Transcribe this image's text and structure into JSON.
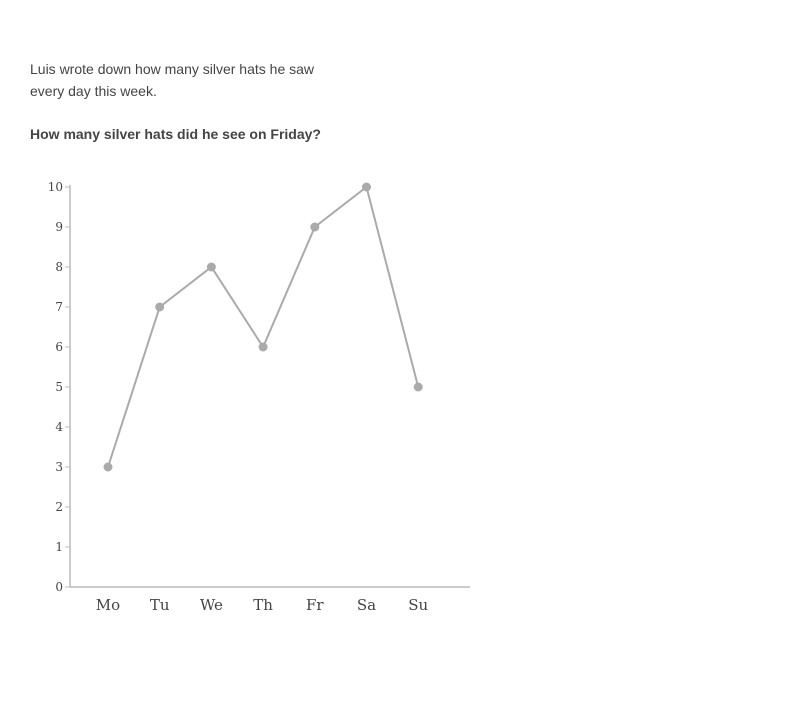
{
  "problem": {
    "prompt": "Luis wrote down how many silver hats he saw every day this week.",
    "question": "How many silver hats did he see on Friday?"
  },
  "chart_data": {
    "type": "line",
    "categories": [
      "Mo",
      "Tu",
      "We",
      "Th",
      "Fr",
      "Sa",
      "Su"
    ],
    "values": [
      3,
      7,
      8,
      6,
      9,
      10,
      5
    ],
    "yticks": [
      0,
      1,
      2,
      3,
      4,
      5,
      6,
      7,
      8,
      9,
      10
    ],
    "ylim": [
      0,
      10
    ],
    "title": "",
    "xlabel": "",
    "ylabel": "",
    "grid": false,
    "color": "#aaaaaa"
  }
}
